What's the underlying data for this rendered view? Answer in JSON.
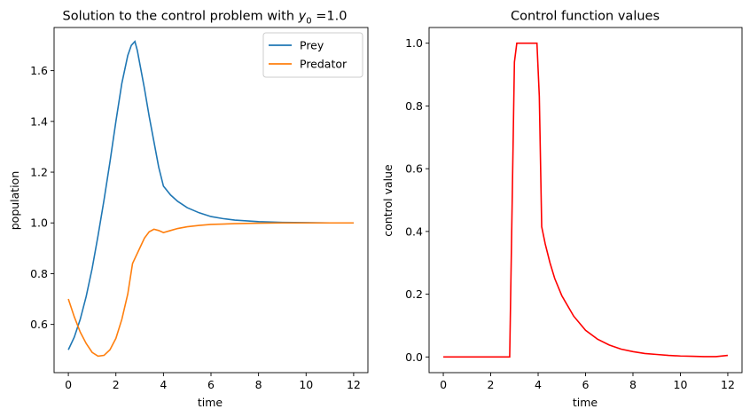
{
  "chart_data": [
    {
      "type": "line",
      "title": "Solution to the control problem with ",
      "title_math": "y",
      "title_sub": "0",
      "title_tail": " =1.0",
      "xlabel": "time",
      "ylabel": "population",
      "xlim": [
        -0.6,
        12.6
      ],
      "ylim": [
        0.41,
        1.77
      ],
      "xticks": [
        0,
        2,
        4,
        6,
        8,
        10,
        12
      ],
      "yticks": [
        0.6,
        0.8,
        1.0,
        1.2,
        1.4,
        1.6
      ],
      "ytick_labels": [
        "0.6",
        "0.8",
        "1.0",
        "1.2",
        "1.4",
        "1.6"
      ],
      "legend_position": "top-right",
      "series": [
        {
          "name": "Prey",
          "color": "#1f77b4",
          "x": [
            0,
            0.25,
            0.5,
            0.75,
            1.0,
            1.25,
            1.5,
            1.75,
            2.0,
            2.25,
            2.5,
            2.65,
            2.8,
            2.9,
            3.0,
            3.2,
            3.4,
            3.6,
            3.8,
            4.0,
            4.3,
            4.6,
            5.0,
            5.5,
            6.0,
            6.5,
            7.0,
            8.0,
            9.0,
            10.0,
            11.0,
            12.0
          ],
          "y": [
            0.5,
            0.55,
            0.62,
            0.71,
            0.82,
            0.95,
            1.09,
            1.24,
            1.4,
            1.55,
            1.66,
            1.7,
            1.715,
            1.68,
            1.63,
            1.53,
            1.42,
            1.32,
            1.22,
            1.145,
            1.11,
            1.085,
            1.06,
            1.04,
            1.025,
            1.017,
            1.011,
            1.005,
            1.002,
            1.001,
            1.0,
            1.0
          ]
        },
        {
          "name": "Predator",
          "color": "#ff7f0e",
          "x": [
            0,
            0.25,
            0.5,
            0.75,
            1.0,
            1.25,
            1.5,
            1.75,
            2.0,
            2.25,
            2.5,
            2.7,
            2.85,
            3.0,
            3.2,
            3.4,
            3.6,
            3.8,
            4.0,
            4.3,
            4.6,
            5.0,
            5.5,
            6.0,
            7.0,
            8.0,
            9.0,
            10.0,
            11.0,
            12.0
          ],
          "y": [
            0.7,
            0.63,
            0.57,
            0.525,
            0.49,
            0.475,
            0.478,
            0.5,
            0.545,
            0.62,
            0.72,
            0.84,
            0.87,
            0.9,
            0.94,
            0.965,
            0.975,
            0.97,
            0.962,
            0.97,
            0.978,
            0.985,
            0.99,
            0.994,
            0.997,
            0.999,
            1.0,
            1.0,
            1.0,
            1.0
          ]
        }
      ]
    },
    {
      "type": "line",
      "title": "Control function values",
      "xlabel": "time",
      "ylabel": "control value",
      "xlim": [
        -0.6,
        12.6
      ],
      "ylim": [
        -0.05,
        1.05
      ],
      "xticks": [
        0,
        2,
        4,
        6,
        8,
        10,
        12
      ],
      "yticks": [
        0.0,
        0.2,
        0.4,
        0.6,
        0.8,
        1.0
      ],
      "ytick_labels": [
        "0.0",
        "0.2",
        "0.4",
        "0.6",
        "0.8",
        "1.0"
      ],
      "series": [
        {
          "color": "#ff0000",
          "x": [
            0,
            1.0,
            2.0,
            2.8,
            3.0,
            3.1,
            3.2,
            3.5,
            3.8,
            3.95,
            4.05,
            4.15,
            4.3,
            4.5,
            4.7,
            5.0,
            5.5,
            6.0,
            6.5,
            7.0,
            7.5,
            8.0,
            8.5,
            9.0,
            9.5,
            10.0,
            10.5,
            11.0,
            11.5,
            12.0
          ],
          "y": [
            0,
            0,
            0,
            0,
            0.94,
            1.0,
            1.0,
            1.0,
            1.0,
            1.0,
            0.83,
            0.415,
            0.36,
            0.3,
            0.25,
            0.195,
            0.13,
            0.085,
            0.057,
            0.038,
            0.025,
            0.017,
            0.011,
            0.008,
            0.005,
            0.003,
            0.002,
            0.001,
            0.001,
            0.005
          ]
        }
      ]
    }
  ]
}
